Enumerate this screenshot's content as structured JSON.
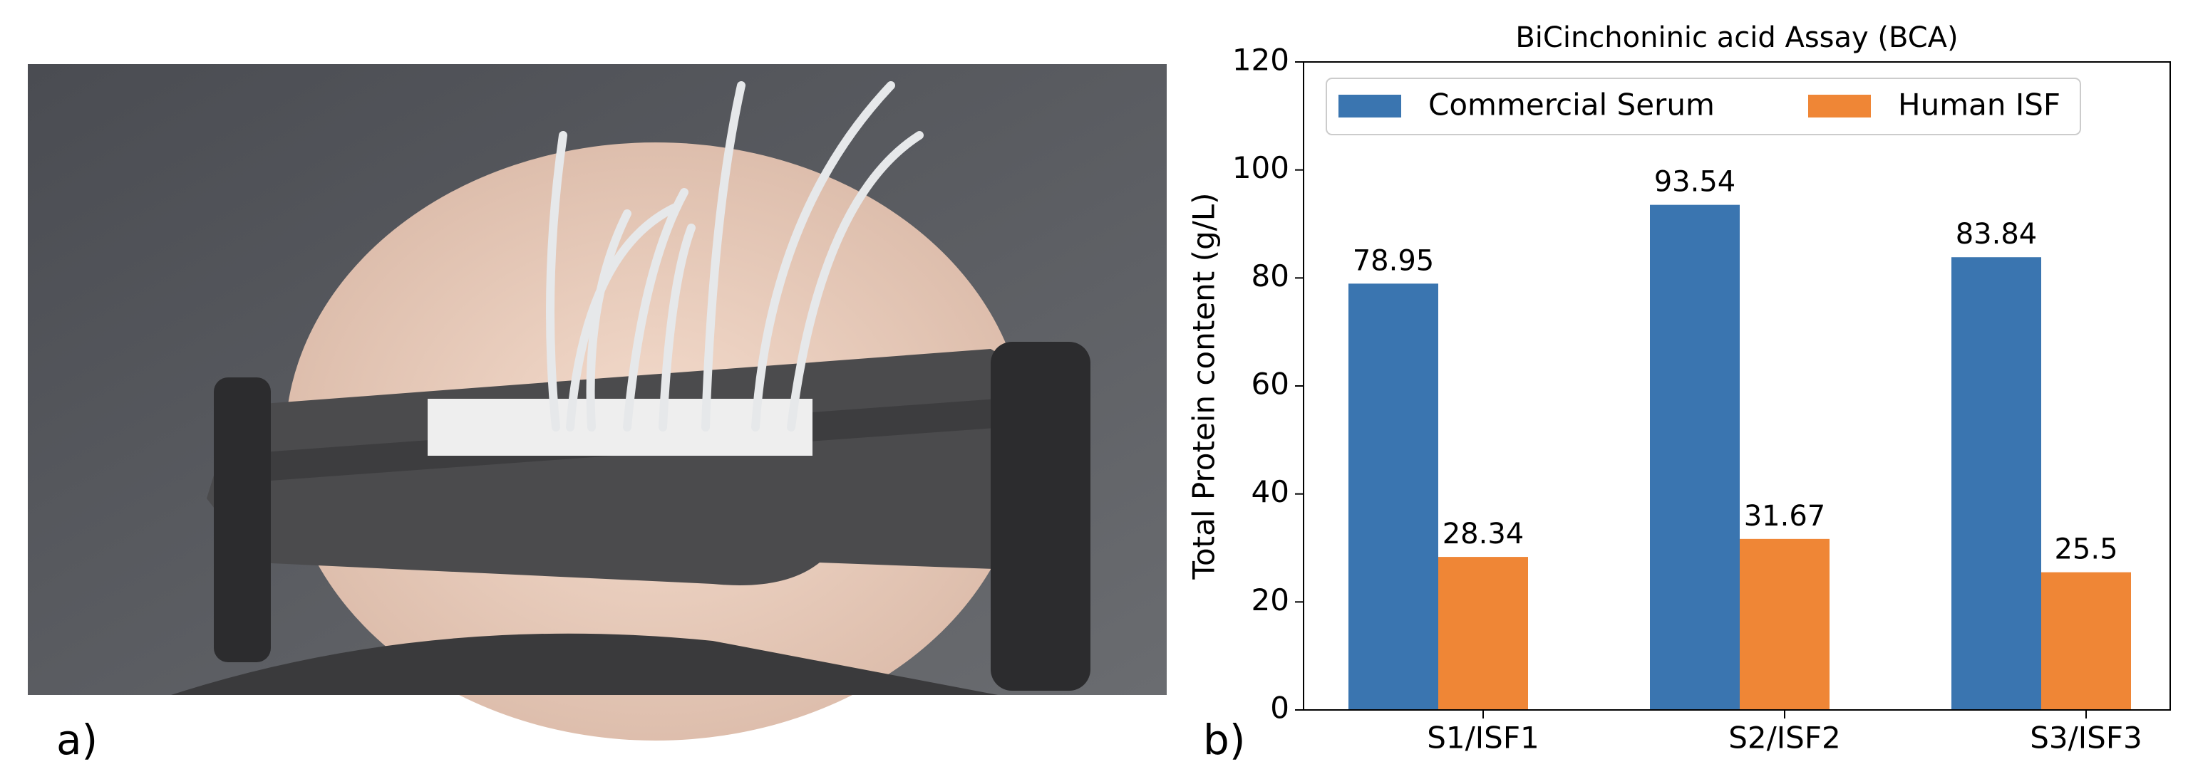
{
  "panel_labels": [
    "a)",
    "b)"
  ],
  "chart_data": {
    "type": "bar",
    "title": "BiCinchoninic acid Assay (BCA)",
    "ylabel": "Total Protein content (g/L)",
    "categories": [
      "S1/ISF1",
      "S2/ISF2",
      "S3/ISF3"
    ],
    "series": [
      {
        "name": "Commercial Serum",
        "color": "#3a75b0",
        "values": [
          78.95,
          93.54,
          83.84
        ]
      },
      {
        "name": "Human ISF",
        "color": "#ef8636",
        "values": [
          28.34,
          31.67,
          25.5
        ]
      }
    ],
    "ylim": [
      0,
      120
    ],
    "yticks": [
      0,
      20,
      40,
      60,
      80,
      100,
      120
    ],
    "legend": "upper center"
  }
}
